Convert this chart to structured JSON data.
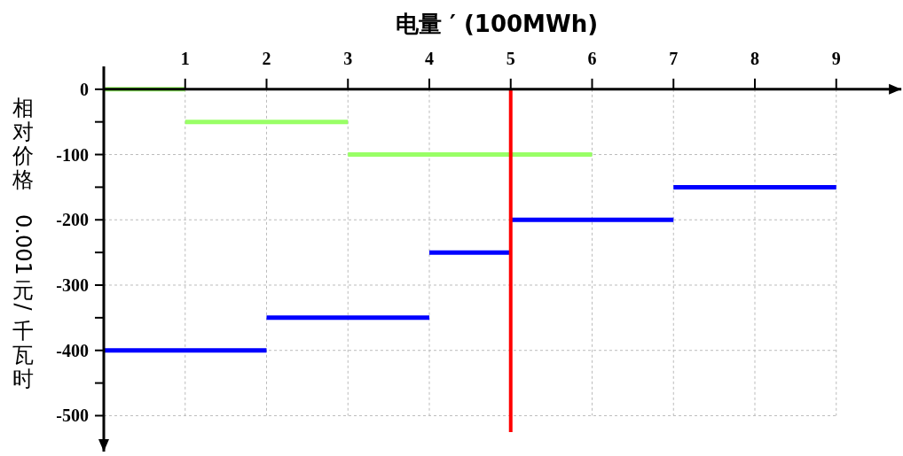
{
  "chart_data": {
    "type": "line",
    "xlabel": "电量 ′ (100MWh)",
    "ylabel": "相对价格  0.001元/千瓦时",
    "xlim": [
      0,
      9.8
    ],
    "xticks": [
      1,
      2,
      3,
      4,
      5,
      6,
      7,
      8,
      9
    ],
    "ylim": [
      -555,
      35
    ],
    "yticks": [
      0,
      {
        "value": -50,
        "label": null
      },
      -100,
      {
        "value": -150,
        "label": null
      },
      -200,
      {
        "value": -250,
        "label": null
      },
      -300,
      {
        "value": -350,
        "label": null
      },
      -400,
      {
        "value": -450,
        "label": null
      },
      -500
    ],
    "grid": true,
    "line_style": "solid",
    "series": [
      {
        "color": "#99ff66",
        "x": [
          0,
          1,
          null,
          1,
          3,
          null,
          3,
          6
        ],
        "values": [
          0,
          0,
          null,
          -50,
          -50,
          null,
          -100,
          -100
        ]
      },
      {
        "color": "#0000ff",
        "x": [
          0,
          2,
          null,
          2,
          4,
          null,
          4,
          5,
          null,
          5,
          7,
          null,
          7,
          9
        ],
        "values": [
          -400,
          -400,
          null,
          -350,
          -350,
          null,
          -250,
          -250,
          null,
          -200,
          -200,
          null,
          -150,
          -150
        ]
      }
    ],
    "ref_lines": [
      {
        "axis": "x",
        "value": 5,
        "color": "#ff0000",
        "line_style": "solid"
      }
    ]
  }
}
